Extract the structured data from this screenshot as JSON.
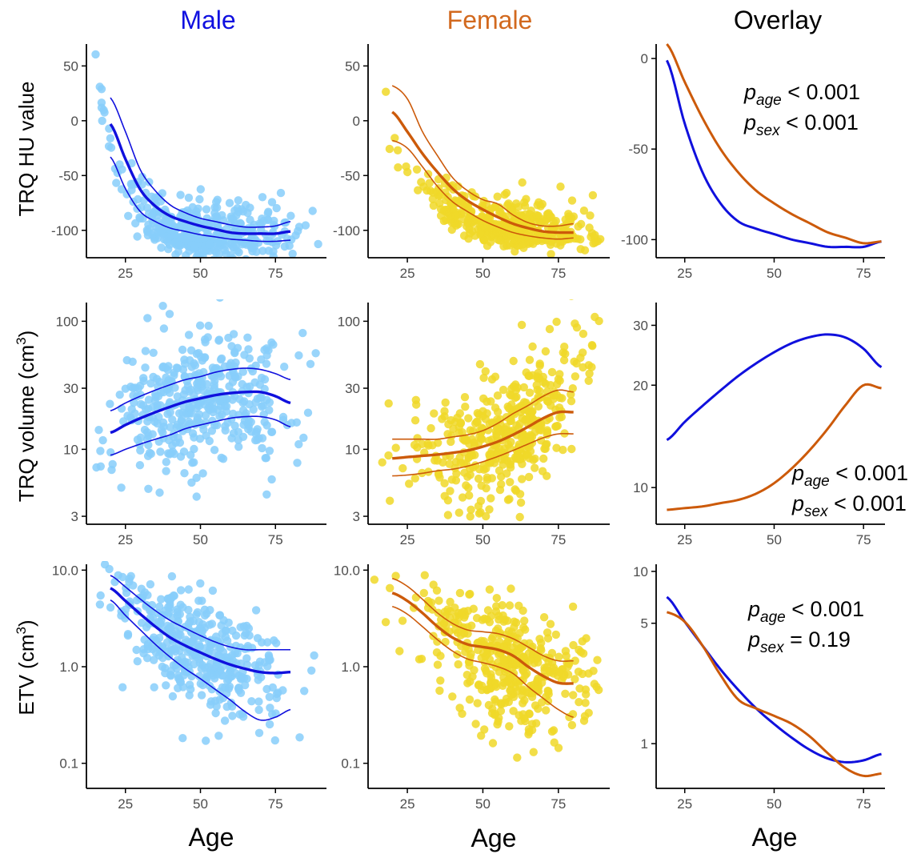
{
  "figure": {
    "column_titles": [
      {
        "text": "Male",
        "color": "#1010e0"
      },
      {
        "text": "Female",
        "color": "#d2691e"
      },
      {
        "text": "Overlay",
        "color": "#000000"
      }
    ],
    "row_labels": [
      "TRQ HU value",
      "TRQ volume (cm",
      "ETV (cm"
    ],
    "row_label_superscript": "3",
    "row_label_suffix": ")",
    "x_axis_label": "Age",
    "annotations": [
      {
        "panel": "r0c2",
        "lines": [
          {
            "p": "p",
            "sub": "age",
            "rel": "< 0.001"
          },
          {
            "p": "p",
            "sub": "sex",
            "rel": "< 0.001"
          }
        ]
      },
      {
        "panel": "r1c2",
        "lines": [
          {
            "p": "p",
            "sub": "age",
            "rel": "< 0.001"
          },
          {
            "p": "p",
            "sub": "sex",
            "rel": "< 0.001"
          }
        ]
      },
      {
        "panel": "r2c2",
        "lines": [
          {
            "p": "p",
            "sub": "age",
            "rel": "< 0.001"
          },
          {
            "p": "p",
            "sub": "sex",
            "rel": "=  0.19"
          }
        ]
      }
    ],
    "colors": {
      "male_points": "#87cefa",
      "female_points": "#f0d828",
      "male_line": "#1010dd",
      "female_line": "#cc5a0a",
      "axis": "#000000",
      "tick_text": "#4d4d4d"
    }
  },
  "chart_data": [
    {
      "id": "r0c0",
      "type": "scatter",
      "sex": "male",
      "xlim": [
        12,
        92
      ],
      "ylim": [
        -125,
        70
      ],
      "yscale": "linear",
      "xticks": [
        25,
        50,
        75
      ],
      "yticks": [
        50,
        0,
        -50,
        -100
      ],
      "xtick_labels": [
        "25",
        "50",
        "75"
      ],
      "ytick_labels": [
        "50",
        "0",
        "-50",
        "-100"
      ],
      "scatter_gen": {
        "seed": 11,
        "n": 420,
        "xmin": 15,
        "xmax": 90,
        "center": 50,
        "spread": 15,
        "trend": "hu_m",
        "sd": 15,
        "skew": 1
      },
      "fit": {
        "x": [
          20,
          25,
          30,
          35,
          40,
          45,
          50,
          55,
          60,
          65,
          70,
          75,
          80
        ],
        "y": [
          -3,
          -35,
          -63,
          -78,
          -87,
          -92,
          -96,
          -99,
          -102,
          -103,
          -103,
          -103,
          -101
        ]
      },
      "ci_upper": {
        "x": [
          20,
          25,
          30,
          35,
          40,
          45,
          50,
          55,
          60,
          65,
          70,
          75,
          80
        ],
        "y": [
          21,
          -10,
          -45,
          -64,
          -77,
          -84,
          -89,
          -92,
          -95,
          -97,
          -97,
          -96,
          -92
        ]
      },
      "ci_lower": {
        "x": [
          20,
          25,
          30,
          35,
          40,
          45,
          50,
          55,
          60,
          65,
          70,
          75,
          80
        ],
        "y": [
          -33,
          -62,
          -83,
          -92,
          -98,
          -101,
          -104,
          -106,
          -108,
          -109,
          -110,
          -110,
          -109
        ]
      }
    },
    {
      "id": "r0c1",
      "type": "scatter",
      "sex": "female",
      "xlim": [
        12,
        92
      ],
      "ylim": [
        -125,
        70
      ],
      "yscale": "linear",
      "xticks": [
        25,
        50,
        75
      ],
      "yticks": [
        50,
        0,
        -50,
        -100
      ],
      "xtick_labels": [
        "25",
        "50",
        "75"
      ],
      "ytick_labels": [
        "50",
        "0",
        "-50",
        "-100"
      ],
      "scatter_gen": {
        "seed": 23,
        "n": 420,
        "xmin": 14,
        "xmax": 89,
        "center": 58,
        "spread": 14,
        "trend": "hu_f",
        "sd": 13,
        "skew": 1
      },
      "fit": {
        "x": [
          20,
          25,
          30,
          35,
          40,
          45,
          50,
          55,
          60,
          65,
          70,
          75,
          80
        ],
        "y": [
          8,
          -10,
          -30,
          -47,
          -62,
          -73,
          -81,
          -88,
          -94,
          -98,
          -101,
          -102,
          -102
        ]
      },
      "ci_upper": {
        "x": [
          20,
          25,
          30,
          35,
          40,
          45,
          50,
          55,
          60,
          65,
          70,
          75,
          80
        ],
        "y": [
          32,
          20,
          -10,
          -32,
          -52,
          -64,
          -72,
          -76,
          -86,
          -93,
          -96,
          -96,
          -94
        ]
      },
      "ci_lower": {
        "x": [
          20,
          25,
          30,
          35,
          40,
          45,
          50,
          55,
          60,
          65,
          70,
          75,
          80
        ],
        "y": [
          -18,
          -25,
          -42,
          -60,
          -74,
          -83,
          -91,
          -97,
          -102,
          -105,
          -107,
          -108,
          -107
        ]
      }
    },
    {
      "id": "r0c2",
      "type": "line",
      "sex": "both",
      "xlim": [
        17,
        81
      ],
      "ylim": [
        -110,
        8
      ],
      "yscale": "linear",
      "xticks": [
        25,
        50,
        75
      ],
      "yticks": [
        0,
        -50,
        -100
      ],
      "xtick_labels": [
        "25",
        "50",
        "75"
      ],
      "ytick_labels": [
        "0",
        "-50",
        "-100"
      ],
      "series": [
        {
          "name": "Male",
          "x": [
            20,
            25,
            30,
            35,
            40,
            45,
            50,
            55,
            60,
            65,
            70,
            75,
            80
          ],
          "y": [
            -1,
            -36,
            -63,
            -80,
            -90,
            -94,
            -97,
            -100,
            -102,
            -104,
            -104,
            -104,
            -101
          ]
        },
        {
          "name": "Female",
          "x": [
            20,
            25,
            30,
            35,
            40,
            45,
            50,
            55,
            60,
            65,
            70,
            75,
            80
          ],
          "y": [
            8,
            -13,
            -33,
            -50,
            -63,
            -73,
            -80,
            -86,
            -91,
            -96,
            -99,
            -102,
            -101
          ]
        }
      ]
    },
    {
      "id": "r1c0",
      "type": "scatter",
      "sex": "male",
      "xlim": [
        12,
        92
      ],
      "ylim": [
        2.6,
        140
      ],
      "yscale": "log",
      "xticks": [
        25,
        50,
        75
      ],
      "yticks": [
        100,
        30,
        10,
        3
      ],
      "xtick_labels": [
        "25",
        "50",
        "75"
      ],
      "ytick_labels": [
        "100",
        "30",
        "10",
        "3"
      ],
      "scatter_gen": {
        "seed": 37,
        "n": 420,
        "xmin": 15,
        "xmax": 90,
        "center": 50,
        "spread": 16,
        "trend": "vol_m",
        "sd": 0.26,
        "skew": 0
      },
      "fit": {
        "x": [
          20,
          25,
          30,
          35,
          40,
          45,
          50,
          55,
          60,
          65,
          70,
          75,
          80
        ],
        "y": [
          13.5,
          15.5,
          17.5,
          19.5,
          21.5,
          23.5,
          25,
          26.5,
          27.5,
          28,
          28,
          26,
          23
        ]
      },
      "ci_upper": {
        "x": [
          20,
          25,
          30,
          35,
          40,
          45,
          50,
          55,
          60,
          65,
          70,
          75,
          80
        ],
        "y": [
          20,
          23,
          26,
          29,
          32,
          35,
          37,
          40,
          42,
          43,
          42,
          39,
          35
        ]
      },
      "ci_lower": {
        "x": [
          20,
          25,
          30,
          35,
          40,
          45,
          50,
          55,
          60,
          65,
          70,
          75,
          80
        ],
        "y": [
          9,
          10,
          11,
          12,
          13,
          14.5,
          15.5,
          16.5,
          17.5,
          18,
          18,
          17,
          15
        ]
      }
    },
    {
      "id": "r1c1",
      "type": "scatter",
      "sex": "female",
      "xlim": [
        12,
        92
      ],
      "ylim": [
        2.6,
        140
      ],
      "yscale": "log",
      "xticks": [
        25,
        50,
        75
      ],
      "yticks": [
        100,
        30,
        10,
        3
      ],
      "xtick_labels": [
        "25",
        "50",
        "75"
      ],
      "ytick_labels": [
        "100",
        "30",
        "10",
        "3"
      ],
      "scatter_gen": {
        "seed": 53,
        "n": 420,
        "xmin": 14,
        "xmax": 89,
        "center": 58,
        "spread": 14,
        "trend": "vol_f",
        "sd": 0.25,
        "skew": 0
      },
      "fit": {
        "x": [
          20,
          25,
          30,
          35,
          40,
          45,
          50,
          55,
          60,
          65,
          70,
          75,
          80
        ],
        "y": [
          8.5,
          8.7,
          8.9,
          9.1,
          9.4,
          9.8,
          10.5,
          11.5,
          13,
          15,
          17.5,
          19.5,
          19.5
        ]
      },
      "ci_upper": {
        "x": [
          20,
          25,
          30,
          35,
          40,
          45,
          50,
          55,
          60,
          65,
          70,
          75,
          80
        ],
        "y": [
          12,
          12,
          12,
          12,
          12.5,
          13,
          14,
          16,
          19,
          22,
          26,
          29,
          28
        ]
      },
      "ci_lower": {
        "x": [
          20,
          25,
          30,
          35,
          40,
          45,
          50,
          55,
          60,
          65,
          70,
          75,
          80
        ],
        "y": [
          6.2,
          6.3,
          6.5,
          6.8,
          7,
          7.4,
          8,
          8.8,
          9.8,
          11,
          12.3,
          13.2,
          13.2
        ]
      }
    },
    {
      "id": "r1c2",
      "type": "line",
      "sex": "both",
      "xlim": [
        17,
        81
      ],
      "ylim": [
        7.8,
        35
      ],
      "yscale": "log",
      "xticks": [
        25,
        50,
        75
      ],
      "yticks": [
        30,
        20,
        10
      ],
      "xtick_labels": [
        "25",
        "50",
        "75"
      ],
      "ytick_labels": [
        "30",
        "20",
        "10"
      ],
      "series": [
        {
          "name": "Male",
          "x": [
            20,
            25,
            30,
            35,
            40,
            45,
            50,
            55,
            60,
            65,
            70,
            75,
            80
          ],
          "y": [
            13.8,
            15.6,
            17.4,
            19.3,
            21.3,
            23.2,
            25,
            26.6,
            27.7,
            28.2,
            27.6,
            25.6,
            22.6
          ]
        },
        {
          "name": "Female",
          "x": [
            20,
            25,
            30,
            35,
            40,
            45,
            50,
            55,
            60,
            65,
            70,
            75,
            80
          ],
          "y": [
            8.6,
            8.7,
            8.8,
            9,
            9.2,
            9.6,
            10.3,
            11.4,
            12.9,
            14.9,
            17.5,
            20,
            19.6
          ]
        }
      ]
    },
    {
      "id": "r2c0",
      "type": "scatter",
      "sex": "male",
      "xlim": [
        12,
        92
      ],
      "ylim": [
        0.055,
        11.5
      ],
      "yscale": "log",
      "xticks": [
        25,
        50,
        75
      ],
      "yticks": [
        10,
        1,
        0.1
      ],
      "xtick_labels": [
        "25",
        "50",
        "75"
      ],
      "ytick_labels": [
        "10.0",
        "1.0",
        "0.1"
      ],
      "scatter_gen": {
        "seed": 71,
        "n": 420,
        "xmin": 15,
        "xmax": 90,
        "center": 50,
        "spread": 15,
        "trend": "etv_m",
        "sd": 0.33,
        "skew": -1
      },
      "fit": {
        "x": [
          20,
          25,
          30,
          35,
          40,
          45,
          50,
          55,
          60,
          65,
          70,
          75,
          80
        ],
        "y": [
          6.5,
          4.8,
          3.5,
          2.6,
          2,
          1.65,
          1.4,
          1.2,
          1.05,
          0.95,
          0.88,
          0.86,
          0.88
        ]
      },
      "ci_upper": {
        "x": [
          20,
          25,
          30,
          35,
          40,
          45,
          50,
          55,
          60,
          65,
          70,
          75,
          80
        ],
        "y": [
          8.8,
          6.7,
          5,
          3.8,
          3,
          2.5,
          2.1,
          1.8,
          1.6,
          1.5,
          1.5,
          1.5,
          1.5
        ]
      },
      "ci_lower": {
        "x": [
          20,
          25,
          30,
          35,
          40,
          45,
          50,
          55,
          60,
          65,
          70,
          75,
          80
        ],
        "y": [
          4.9,
          3.4,
          2.4,
          1.7,
          1.25,
          0.95,
          0.75,
          0.58,
          0.45,
          0.34,
          0.28,
          0.3,
          0.36
        ]
      }
    },
    {
      "id": "r2c1",
      "type": "scatter",
      "sex": "female",
      "xlim": [
        12,
        92
      ],
      "ylim": [
        0.055,
        11.5
      ],
      "yscale": "log",
      "xticks": [
        25,
        50,
        75
      ],
      "yticks": [
        10,
        1,
        0.1
      ],
      "xtick_labels": [
        "25",
        "50",
        "75"
      ],
      "ytick_labels": [
        "10.0",
        "1.0",
        "0.1"
      ],
      "scatter_gen": {
        "seed": 89,
        "n": 420,
        "xmin": 14,
        "xmax": 89,
        "center": 58,
        "spread": 14,
        "trend": "etv_f",
        "sd": 0.35,
        "skew": -1
      },
      "fit": {
        "x": [
          20,
          25,
          30,
          35,
          40,
          45,
          50,
          55,
          60,
          65,
          70,
          75,
          80
        ],
        "y": [
          5.8,
          4.8,
          3.6,
          2.6,
          2,
          1.7,
          1.6,
          1.5,
          1.3,
          1,
          0.8,
          0.68,
          0.67
        ]
      },
      "ci_upper": {
        "x": [
          20,
          25,
          30,
          35,
          40,
          45,
          50,
          55,
          60,
          65,
          70,
          75,
          80
        ],
        "y": [
          8.2,
          6.8,
          5,
          3.6,
          2.8,
          2.4,
          2.3,
          2.2,
          1.95,
          1.6,
          1.3,
          1.15,
          1.15
        ]
      },
      "ci_lower": {
        "x": [
          20,
          25,
          30,
          35,
          40,
          45,
          50,
          55,
          60,
          65,
          70,
          75,
          80
        ],
        "y": [
          4.2,
          3.5,
          2.6,
          1.9,
          1.45,
          1.2,
          1.1,
          1,
          0.85,
          0.62,
          0.47,
          0.36,
          0.3
        ]
      }
    },
    {
      "id": "r2c2",
      "type": "line",
      "sex": "both",
      "xlim": [
        17,
        81
      ],
      "ylim": [
        0.55,
        11
      ],
      "yscale": "log",
      "xticks": [
        25,
        50,
        75
      ],
      "yticks": [
        10,
        5,
        1
      ],
      "xtick_labels": [
        "25",
        "50",
        "75"
      ],
      "ytick_labels": [
        "10",
        "5",
        "1"
      ],
      "series": [
        {
          "name": "Male",
          "x": [
            20,
            25,
            30,
            35,
            40,
            45,
            50,
            55,
            60,
            65,
            70,
            75,
            80
          ],
          "y": [
            7.1,
            5.1,
            3.7,
            2.7,
            2.05,
            1.6,
            1.3,
            1.08,
            0.92,
            0.82,
            0.78,
            0.8,
            0.87
          ]
        },
        {
          "name": "Female",
          "x": [
            20,
            25,
            30,
            35,
            40,
            45,
            50,
            55,
            60,
            65,
            70,
            75,
            80
          ],
          "y": [
            5.8,
            5.1,
            3.7,
            2.5,
            1.8,
            1.6,
            1.45,
            1.3,
            1.1,
            0.88,
            0.72,
            0.65,
            0.67
          ]
        }
      ]
    }
  ]
}
